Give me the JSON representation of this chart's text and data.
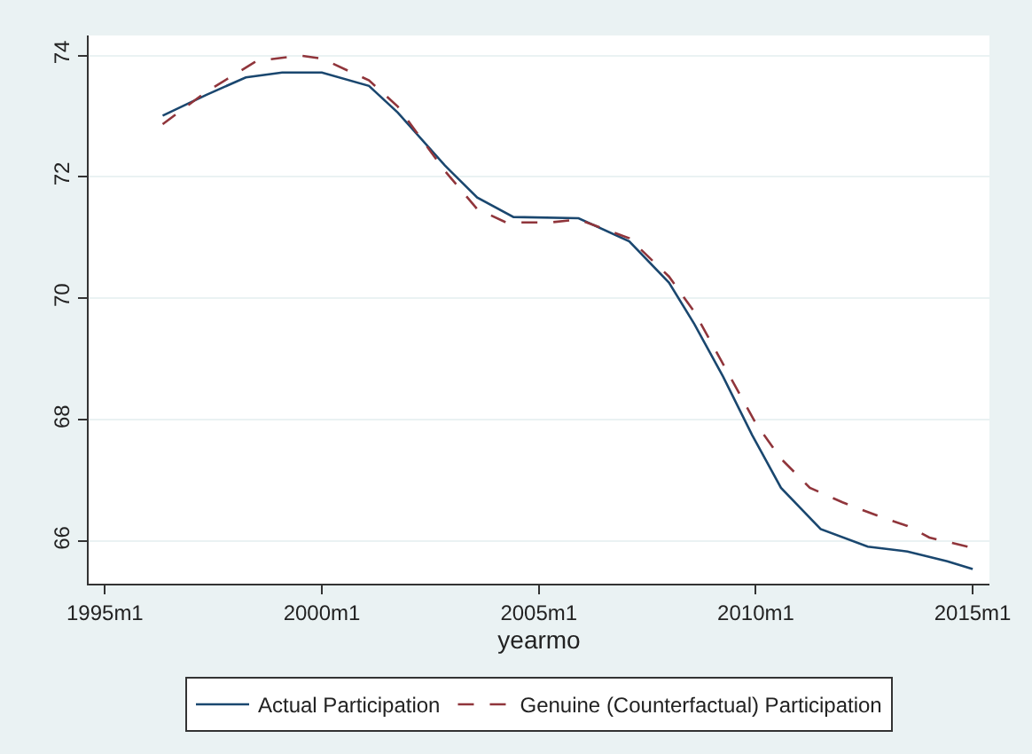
{
  "chart_data": {
    "type": "line",
    "xlabel": "yearmo",
    "xlim": [
      "1994-08-17",
      "2015-05-22"
    ],
    "xticks": [
      {
        "value": "1995-01",
        "label": "1995m1"
      },
      {
        "value": "2000-01",
        "label": "2000m1"
      },
      {
        "value": "2005-01",
        "label": "2005m1"
      },
      {
        "value": "2010-01",
        "label": "2010m1"
      },
      {
        "value": "2015-01",
        "label": "2015m1"
      }
    ],
    "ylim": [
      65.3,
      74.33
    ],
    "yticks": [
      66,
      68,
      70,
      72,
      74
    ],
    "grid": "y",
    "legend": "bottom",
    "marker": "none",
    "series": [
      {
        "name": "Actual Participation",
        "color": "#1a476f",
        "line_style": "solid",
        "x": [
          "1996-05",
          "1997-05",
          "1998-04",
          "1999-02",
          "2000-01",
          "2001-02",
          "2001-10",
          "2002-11",
          "2003-08",
          "2004-06",
          "2005-12",
          "2007-02",
          "2008-01",
          "2008-08",
          "2009-04",
          "2009-12",
          "2010-08",
          "2011-07",
          "2012-08",
          "2013-07",
          "2014-06",
          "2015-01"
        ],
        "values": [
          73.01,
          73.35,
          73.64,
          73.72,
          73.72,
          73.5,
          73.06,
          72.19,
          71.66,
          71.34,
          71.32,
          70.94,
          70.26,
          69.58,
          68.71,
          67.75,
          66.88,
          66.2,
          65.91,
          65.83,
          65.67,
          65.54
        ]
      },
      {
        "name": "Genuine (Counterfactual) Participation",
        "color": "#90353b",
        "line_style": "dashed",
        "x": [
          "1996-05",
          "1997-05",
          "1998-07",
          "1999-07",
          "2000-01",
          "2001-02",
          "2001-10",
          "2002-11",
          "2003-08",
          "2004-04",
          "2005-04",
          "2005-12",
          "2007-02",
          "2008-01",
          "2008-08",
          "2009-05",
          "2010-01",
          "2010-08",
          "2011-04",
          "2012-01",
          "2012-12",
          "2013-07",
          "2014-01",
          "2015-01"
        ],
        "values": [
          72.87,
          73.4,
          73.91,
          74.0,
          73.95,
          73.59,
          73.16,
          72.1,
          71.47,
          71.25,
          71.25,
          71.3,
          70.99,
          70.36,
          69.78,
          68.81,
          67.94,
          67.36,
          66.88,
          66.64,
          66.39,
          66.25,
          66.06,
          65.89
        ]
      }
    ]
  }
}
